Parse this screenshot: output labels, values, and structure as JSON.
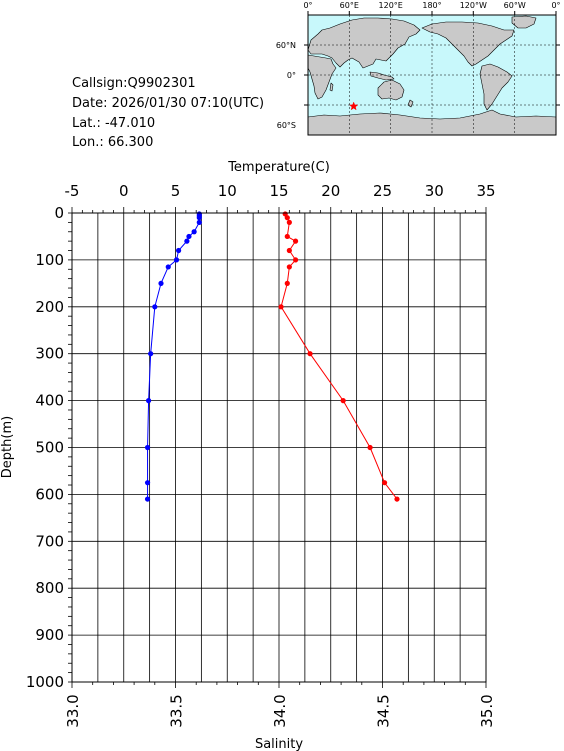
{
  "info": {
    "callsign": "Callsign:Q9902301",
    "date": "Date:  2026/01/30 07:10(UTC)",
    "lat": "Lat.:  -47.010",
    "lon": "Lon.:   66.300"
  },
  "map": {
    "lon_labels": [
      "0°",
      "60°E",
      "120°E",
      "180°",
      "120°W",
      "60°W",
      "0°"
    ],
    "lat_labels": [
      "60°N",
      "0°",
      "60°S"
    ],
    "station": {
      "lon": 66.3,
      "lat": -47.01
    },
    "colors": {
      "ocean": "#c8f8fb",
      "land": "#c9c9c9",
      "station": "#ff0000"
    }
  },
  "chart_data": {
    "type": "line",
    "ylabel": "Depth(m)",
    "ylim": [
      1000,
      0
    ],
    "y_ticks": [
      "0",
      "100",
      "200",
      "300",
      "400",
      "500",
      "600",
      "700",
      "800",
      "900",
      "1000"
    ],
    "temperature_axis": {
      "label": "Temperature(C)",
      "range": [
        -5,
        35
      ],
      "ticks": [
        "-5",
        "0",
        "5",
        "10",
        "15",
        "20",
        "25",
        "30",
        "35"
      ]
    },
    "salinity_axis": {
      "label": "Salinity",
      "range": [
        33.0,
        35.0
      ],
      "ticks": [
        "33.0",
        "33.5",
        "34.0",
        "34.5",
        "35.0"
      ]
    },
    "grid": true,
    "series": [
      {
        "axis": "temperature",
        "color": "#0000ff",
        "points": [
          {
            "depth": 2,
            "value": 7.3
          },
          {
            "depth": 6,
            "value": 7.3
          },
          {
            "depth": 10,
            "value": 7.3
          },
          {
            "depth": 20,
            "value": 7.3
          },
          {
            "depth": 40,
            "value": 6.8
          },
          {
            "depth": 50,
            "value": 6.3
          },
          {
            "depth": 60,
            "value": 6.1
          },
          {
            "depth": 80,
            "value": 5.3
          },
          {
            "depth": 100,
            "value": 5.1
          },
          {
            "depth": 115,
            "value": 4.3
          },
          {
            "depth": 150,
            "value": 3.6
          },
          {
            "depth": 200,
            "value": 3.0
          },
          {
            "depth": 300,
            "value": 2.6
          },
          {
            "depth": 400,
            "value": 2.4
          },
          {
            "depth": 500,
            "value": 2.3
          },
          {
            "depth": 575,
            "value": 2.3
          },
          {
            "depth": 610,
            "value": 2.3
          }
        ]
      },
      {
        "axis": "salinity",
        "color": "#ff0000",
        "points": [
          {
            "depth": 2,
            "value": 34.03
          },
          {
            "depth": 10,
            "value": 34.04
          },
          {
            "depth": 20,
            "value": 34.05
          },
          {
            "depth": 50,
            "value": 34.04
          },
          {
            "depth": 60,
            "value": 34.08
          },
          {
            "depth": 80,
            "value": 34.05
          },
          {
            "depth": 100,
            "value": 34.08
          },
          {
            "depth": 115,
            "value": 34.05
          },
          {
            "depth": 150,
            "value": 34.04
          },
          {
            "depth": 200,
            "value": 34.01
          },
          {
            "depth": 300,
            "value": 34.15
          },
          {
            "depth": 400,
            "value": 34.31
          },
          {
            "depth": 500,
            "value": 34.44
          },
          {
            "depth": 575,
            "value": 34.51
          },
          {
            "depth": 610,
            "value": 34.57
          }
        ]
      }
    ]
  }
}
